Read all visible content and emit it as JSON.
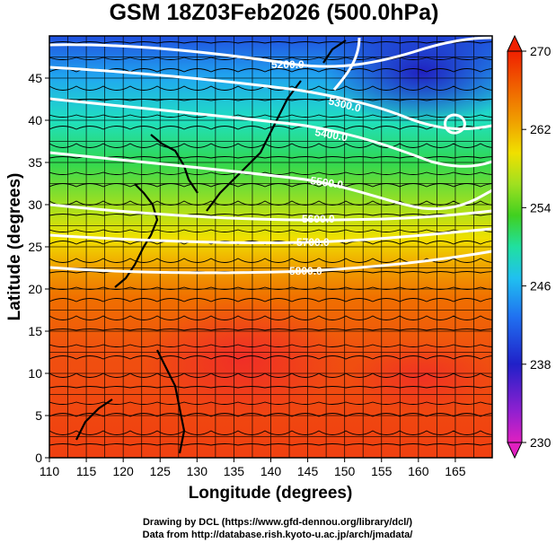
{
  "title": "GSM 18Z03Feb2026 (500.0hPa)",
  "x_axis": {
    "label": "Longitude (degrees)",
    "range": [
      110,
      170
    ],
    "ticks": [
      "110",
      "115",
      "120",
      "125",
      "130",
      "135",
      "140",
      "145",
      "150",
      "155",
      "160",
      "165"
    ]
  },
  "y_axis": {
    "label": "Latitude  (degrees)",
    "range": [
      0,
      50
    ],
    "ticks": [
      "0",
      "5",
      "10",
      "15",
      "20",
      "25",
      "30",
      "35",
      "40",
      "45"
    ]
  },
  "colorbar": {
    "range": [
      230,
      270
    ],
    "ticks": [
      "230",
      "238",
      "246",
      "254",
      "262",
      "270"
    ],
    "colors": [
      "#e020c0",
      "#9020d0",
      "#2020c8",
      "#2070f0",
      "#20c0f0",
      "#20e0a0",
      "#40d020",
      "#a0e020",
      "#f0e000",
      "#f0a000",
      "#f06000",
      "#f02000"
    ]
  },
  "contours": [
    {
      "label": "5200.0"
    },
    {
      "label": "5300.0"
    },
    {
      "label": "5400.0"
    },
    {
      "label": "5500.0"
    },
    {
      "label": "5600.0"
    },
    {
      "label": "5700.0"
    },
    {
      "label": "5800.0"
    }
  ],
  "credits": {
    "line1": "Drawing by DCL (https://www.gfd-dennou.org/library/dcl/)",
    "line2": "Data from http://database.rish.kyoto-u.ac.jp/arch/jmadata/"
  }
}
